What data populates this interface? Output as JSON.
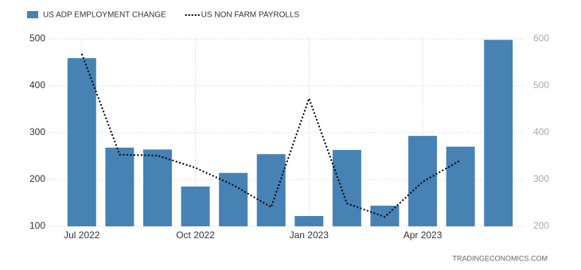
{
  "chart_data": {
    "type": "bar",
    "categories": [
      "Jul 2022",
      null,
      null,
      "Oct 2022",
      null,
      null,
      "Jan 2023",
      null,
      null,
      "Apr 2023",
      null,
      null
    ],
    "series": [
      {
        "name": "US ADP EMPLOYMENT CHANGE",
        "type": "bar",
        "color": "#4682b4",
        "values": [
          459,
          268,
          264,
          185,
          214,
          254,
          122,
          263,
          144,
          293,
          270,
          498
        ]
      },
      {
        "name": "US NON FARM PAYROLLS",
        "type": "line",
        "axis": "y2",
        "color": "#000000",
        "values": [
          568,
          353,
          351,
          325,
          288,
          241,
          473,
          249,
          220,
          295,
          341,
          null
        ]
      }
    ],
    "ylim": [
      100,
      500
    ],
    "yticks": [
      100,
      200,
      300,
      400,
      500
    ],
    "y2lim": [
      200,
      600
    ],
    "y2ticks": [
      200,
      300,
      400,
      500,
      600
    ],
    "grid": true,
    "legend": "top-left",
    "source": "TRADINGECONOMICS.COM"
  }
}
